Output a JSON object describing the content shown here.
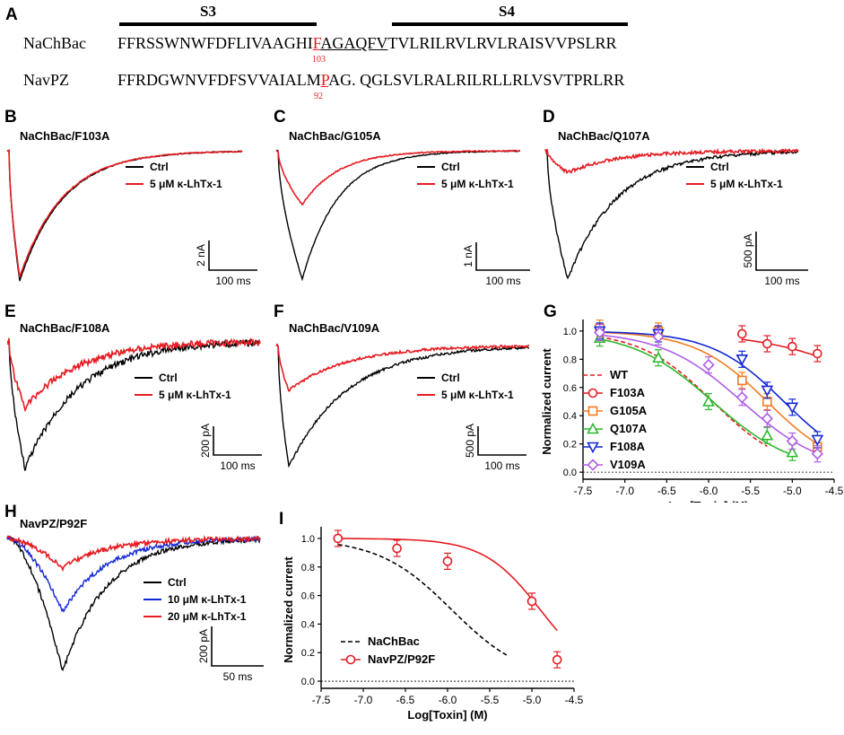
{
  "panel_a": {
    "label": "A",
    "segments": [
      "S3",
      "S4"
    ],
    "rows": [
      {
        "name": "NaChBac",
        "pre": "FFRSSWNWFDFLIVAAGHI",
        "mut": "F",
        "post_u": "AGAQFV",
        "post": "TVLRILRVLRVLRAISVVPSLRR",
        "pos": "103"
      },
      {
        "name": "NavPZ",
        "pre": "FFRDGWNVFDFSVVAIALM",
        "mut": "P",
        "post_u": "",
        "post": "AG. QGLSVLRALRILRLLRLVSVTPRLRR",
        "pos": "92"
      }
    ]
  },
  "trace_panels": [
    {
      "label": "B",
      "title": "NaChBac/F103A",
      "legend": [
        "Ctrl",
        "5 μM κ-LhTx-1"
      ],
      "scale_y": "2 nA",
      "scale_x": "100 ms",
      "block_ratio": 0.97
    },
    {
      "label": "C",
      "title": "NaChBac/G105A",
      "legend": [
        "Ctrl",
        "5 μM κ-LhTx-1"
      ],
      "scale_y": "1 nA",
      "scale_x": "100 ms",
      "block_ratio": 0.42
    },
    {
      "label": "D",
      "title": "NaChBac/Q107A",
      "legend": [
        "Ctrl",
        "5 μM κ-LhTx-1"
      ],
      "scale_y": "500 pA",
      "scale_x": "100 ms",
      "block_ratio": 0.17
    },
    {
      "label": "E",
      "title": "NaChBac/F108A",
      "legend": [
        "Ctrl",
        "5 μM κ-LhTx-1"
      ],
      "scale_y": "200 pA",
      "scale_x": "100 ms",
      "block_ratio": 0.52
    },
    {
      "label": "F",
      "title": "NaChBac/V109A",
      "legend": [
        "Ctrl",
        "5 μM κ-LhTx-1"
      ],
      "scale_y": "500 pA",
      "scale_x": "100 ms",
      "block_ratio": 0.37
    },
    {
      "label": "H",
      "title": "NavPZ/P92F",
      "legend": [
        "Ctrl",
        "10 μM κ-LhTx-1",
        "20 μM κ-LhTx-1"
      ],
      "scale_y": "200 pA",
      "scale_x": "50 ms",
      "block_ratio": 0.22,
      "mid_ratio": 0.55
    }
  ],
  "colors": {
    "ctrl": "#000000",
    "toxin": "#e51c23",
    "wt": "#000000",
    "F103A": "#e51c23",
    "G105A": "#f47b20",
    "Q107A": "#2db82d",
    "F108A": "#1428d4",
    "V109A": "#b05de6",
    "mid": "#1428d4"
  },
  "chart_data": [
    {
      "panel": "G",
      "type": "line",
      "title": "",
      "xlabel": "Log[Toxin] (M)",
      "ylabel": "Normalized current",
      "xlim": [
        -7.5,
        -4.5
      ],
      "ylim": [
        -0.05,
        1.05
      ],
      "xticks": [
        "-7.5",
        "-7.0",
        "-6.5",
        "-6.0",
        "-5.5",
        "-5.0",
        "-4.5"
      ],
      "yticks": [
        "0.0",
        "0.2",
        "0.4",
        "0.6",
        "0.8",
        "1.0"
      ],
      "series": [
        {
          "name": "WT",
          "marker": "none",
          "x": [],
          "y": [],
          "ic50": -5.95,
          "hill": 1.0,
          "fit_range": [
            -7.3,
            -5.3
          ]
        },
        {
          "name": "F103A",
          "marker": "circle",
          "x": [
            -5.6,
            -5.3,
            -5.0,
            -4.7
          ],
          "y": [
            0.98,
            0.91,
            0.89,
            0.84
          ],
          "ic50": -3.6,
          "hill": 0.6
        },
        {
          "name": "G105A",
          "marker": "square",
          "x": [
            -7.3,
            -6.6,
            -5.6,
            -5.3,
            -4.7
          ],
          "y": [
            1.02,
            1.0,
            0.65,
            0.5,
            0.18
          ],
          "ic50": -5.3,
          "hill": 1.0
        },
        {
          "name": "Q107A",
          "marker": "triangle-up",
          "x": [
            -7.3,
            -6.6,
            -6.0,
            -5.3,
            -5.0
          ],
          "y": [
            0.95,
            0.81,
            0.5,
            0.26,
            0.14
          ],
          "ic50": -5.95,
          "hill": 0.9
        },
        {
          "name": "F108A",
          "marker": "triangle-down",
          "x": [
            -7.3,
            -6.6,
            -5.6,
            -5.3,
            -5.0,
            -4.7
          ],
          "y": [
            1.0,
            0.98,
            0.8,
            0.58,
            0.46,
            0.23
          ],
          "ic50": -5.1,
          "hill": 1.0
        },
        {
          "name": "V109A",
          "marker": "diamond",
          "x": [
            -7.3,
            -6.6,
            -6.0,
            -5.6,
            -5.3,
            -5.0,
            -4.7
          ],
          "y": [
            0.99,
            0.96,
            0.76,
            0.53,
            0.38,
            0.22,
            0.13
          ],
          "ic50": -5.6,
          "hill": 0.9
        }
      ]
    },
    {
      "panel": "I",
      "type": "line",
      "title": "",
      "xlabel": "Log[Toxin] (M)",
      "ylabel": "Normalized current",
      "xlim": [
        -7.5,
        -4.5
      ],
      "ylim": [
        -0.05,
        1.05
      ],
      "xticks": [
        "-7.5",
        "-7.0",
        "-6.5",
        "-6.0",
        "-5.5",
        "-5.0",
        "-4.5"
      ],
      "yticks": [
        "0.0",
        "0.2",
        "0.4",
        "0.6",
        "0.8",
        "1.0"
      ],
      "series": [
        {
          "name": "NaChBac",
          "marker": "none",
          "x": [],
          "y": [],
          "ic50": -5.95,
          "hill": 1.0,
          "fit_range": [
            -7.3,
            -5.3
          ]
        },
        {
          "name": "NavPZ/P92F",
          "marker": "circle",
          "x": [
            -7.3,
            -6.6,
            -6.0,
            -5.0,
            -4.7
          ],
          "y": [
            1.0,
            0.93,
            0.84,
            0.56,
            0.15
          ],
          "ic50": -4.9,
          "hill": 1.3
        }
      ]
    }
  ]
}
